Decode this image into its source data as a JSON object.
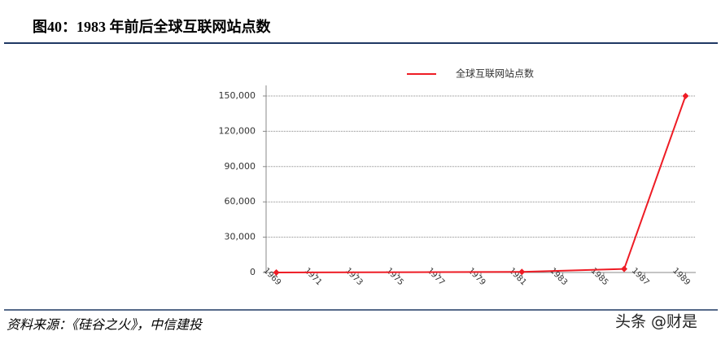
{
  "header": {
    "title": "图40：1983 年前后全球互联网站点数"
  },
  "chart_data": {
    "type": "line",
    "x": [
      1969,
      1981,
      1986,
      1989
    ],
    "series": [
      {
        "name": "全球互联网站点数",
        "color": "#ee1c25",
        "values": [
          0,
          500,
          3000,
          150000
        ]
      }
    ],
    "xlim": [
      1968.5,
      1989.5
    ],
    "xticks": [
      1969,
      1971,
      1973,
      1975,
      1977,
      1979,
      1981,
      1983,
      1985,
      1987,
      1989
    ],
    "ylim": [
      0,
      150000
    ],
    "yticks": [
      0,
      {
        "value": 30000,
        "label": "30,000"
      },
      {
        "value": 60000,
        "label": "60,000"
      },
      {
        "value": 90000,
        "label": "90,000"
      },
      {
        "value": 120000,
        "label": "120,000"
      },
      {
        "value": 150000,
        "label": "150,000"
      }
    ],
    "grid": true,
    "legend": "top"
  },
  "footer": {
    "source": "资料来源：《硅谷之火》，中信建投",
    "watermark": "头条 @财是"
  }
}
